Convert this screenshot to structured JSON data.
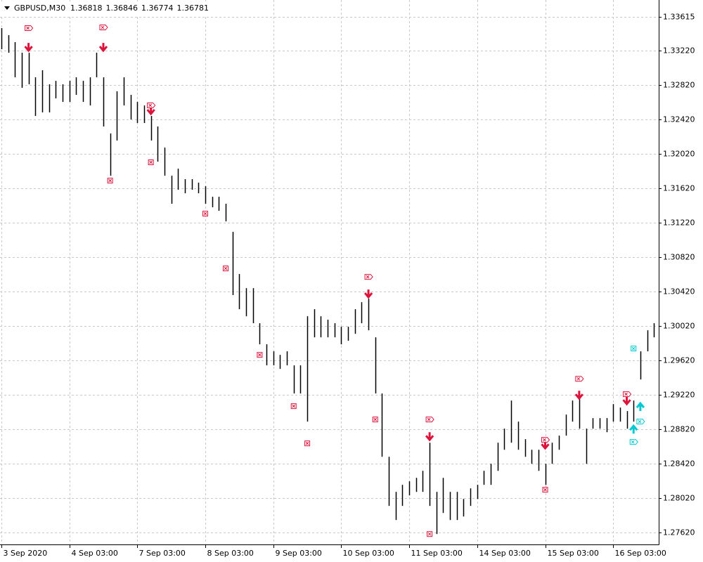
{
  "chart_data": {
    "type": "ohlc",
    "title": "GBPUSD,M30",
    "quote": [
      1.36818,
      1.36846,
      1.36774,
      1.36781
    ],
    "high": [
      1.33484,
      1.33402,
      1.33321,
      1.33198,
      1.33198,
      1.32912,
      1.32994,
      1.32831,
      1.32871,
      1.32831,
      1.32871,
      1.32912,
      1.32871,
      1.32912,
      1.33198,
      1.32912,
      1.32259,
      1.32749,
      1.32912,
      1.32708,
      1.32626,
      1.32585,
      1.32463,
      1.3234,
      1.32095,
      1.31768,
      1.3185,
      1.31728,
      1.31728,
      1.31687,
      1.31646,
      1.31523,
      1.31523,
      1.31442,
      1.31115,
      1.30625,
      1.30461,
      1.30461,
      1.30053,
      1.29808,
      1.29726,
      1.29685,
      1.29726,
      1.29563,
      1.29563,
      1.30134,
      1.30216,
      1.30134,
      1.30094,
      1.30053,
      1.30012,
      1.30012,
      1.30216,
      1.30298,
      1.30339,
      1.29889,
      1.29236,
      1.285,
      1.28092,
      1.28174,
      1.28215,
      1.28255,
      1.28337,
      1.28664,
      1.28092,
      1.28255,
      1.28092,
      1.28092,
      1.2801,
      1.28133,
      1.28174,
      1.28337,
      1.28419,
      1.28664,
      1.28827,
      1.29154,
      1.28909,
      1.28705,
      1.28582,
      1.28582,
      1.28419,
      1.28664,
      1.28746,
      1.28991,
      1.29154,
      1.29236,
      1.28827,
      1.2895,
      1.2895,
      1.2895,
      1.29113,
      1.29072,
      1.29032,
      1.29154,
      1.29726,
      1.29971,
      1.30053
    ],
    "low": [
      1.33239,
      1.33198,
      1.32912,
      1.3279,
      1.32831,
      1.32463,
      1.32504,
      1.32504,
      1.32667,
      1.32626,
      1.32626,
      1.32708,
      1.32626,
      1.32585,
      1.32912,
      1.3234,
      1.31768,
      1.32177,
      1.32585,
      1.32422,
      1.32381,
      1.32381,
      1.32177,
      1.31932,
      1.31768,
      1.31442,
      1.31605,
      1.31564,
      1.31605,
      1.31564,
      1.31442,
      1.31401,
      1.3136,
      1.31237,
      1.3038,
      1.30216,
      1.30134,
      1.30053,
      1.29808,
      1.29563,
      1.29563,
      1.29522,
      1.29563,
      1.29236,
      1.29236,
      1.28909,
      1.29889,
      1.29889,
      1.29889,
      1.29889,
      1.29808,
      1.29849,
      1.2993,
      1.30053,
      1.29971,
      1.29236,
      1.285,
      1.27929,
      1.27765,
      1.27929,
      1.28051,
      1.28092,
      1.28092,
      1.27929,
      1.27602,
      1.27847,
      1.27765,
      1.27765,
      1.27806,
      1.27929,
      1.2801,
      1.28174,
      1.28174,
      1.28337,
      1.28582,
      1.28664,
      1.28582,
      1.285,
      1.28419,
      1.28337,
      1.28174,
      1.28419,
      1.28582,
      1.28746,
      1.28909,
      1.28827,
      1.28419,
      1.28827,
      1.28827,
      1.28786,
      1.28909,
      1.28909,
      1.28827,
      1.28909,
      1.29399,
      1.29726,
      1.29889
    ],
    "bar_color": "#000000",
    "markers": [
      {
        "shape": "arrow-down",
        "color": "#dc143c",
        "bars": [
          4,
          15,
          22,
          54,
          63,
          80,
          85,
          92
        ],
        "prices": [
          1.33255,
          1.33255,
          1.3252,
          1.30388,
          1.28729,
          1.28631,
          1.29211,
          1.29146
        ]
      },
      {
        "shape": "tag",
        "color": "#dc143c",
        "bars": [
          4,
          15,
          22,
          54,
          63,
          80,
          85,
          92
        ],
        "prices": [
          1.33484,
          1.33492,
          1.32586,
          1.30592,
          1.28934,
          1.28697,
          1.29407,
          1.29228
        ]
      },
      {
        "shape": "box",
        "color": "#dc143c",
        "bars": [
          16,
          22,
          30,
          33,
          38,
          43,
          45,
          55,
          63,
          80
        ],
        "prices": [
          1.31711,
          1.31924,
          1.31327,
          1.3069,
          1.29685,
          1.29089,
          1.28656,
          1.28934,
          1.27602,
          1.28117
        ]
      },
      {
        "shape": "arrow-up",
        "color": "#00c8d2",
        "bars": [
          94,
          93
        ],
        "prices": [
          1.29089,
          1.28827
        ]
      },
      {
        "shape": "tag",
        "color": "#00c8d2",
        "bars": [
          94,
          93
        ],
        "prices": [
          1.28909,
          1.28672
        ]
      },
      {
        "shape": "box",
        "color": "#00c8d2",
        "bars": [
          93
        ],
        "prices": [
          1.29759
        ]
      }
    ],
    "xlim": [
      -0.2,
      96.7
    ],
    "xticks": [
      {
        "value": 0,
        "label": "3 Sep 2020"
      },
      {
        "value": 10,
        "label": "4 Sep 03:00"
      },
      {
        "value": 20,
        "label": "7 Sep 03:00"
      },
      {
        "value": 30,
        "label": "8 Sep 03:00"
      },
      {
        "value": 40,
        "label": "9 Sep 03:00"
      },
      {
        "value": 50,
        "label": "10 Sep 03:00"
      },
      {
        "value": 60,
        "label": "11 Sep 03:00"
      },
      {
        "value": 70,
        "label": "14 Sep 03:00"
      },
      {
        "value": 80,
        "label": "15 Sep 03:00"
      },
      {
        "value": 90,
        "label": "16 Sep 03:00"
      }
    ],
    "ylim": [
      1.27481,
      1.33811
    ],
    "yticks": [
      1.33615,
      {
        "value": 1.3322,
        "label": "1.33220"
      },
      {
        "value": 1.3282,
        "label": "1.32820"
      },
      {
        "value": 1.3242,
        "label": "1.32420"
      },
      {
        "value": 1.3202,
        "label": "1.32020"
      },
      {
        "value": 1.3162,
        "label": "1.31620"
      },
      {
        "value": 1.3122,
        "label": "1.31220"
      },
      {
        "value": 1.3082,
        "label": "1.30820"
      },
      {
        "value": 1.3042,
        "label": "1.30420"
      },
      {
        "value": 1.3002,
        "label": "1.30020"
      },
      {
        "value": 1.2962,
        "label": "1.29620"
      },
      {
        "value": 1.2922,
        "label": "1.29220"
      },
      {
        "value": 1.2882,
        "label": "1.28820"
      },
      {
        "value": 1.2842,
        "label": "1.28420"
      },
      {
        "value": 1.2802,
        "label": "1.28020"
      },
      {
        "value": 1.2762,
        "label": "1.27620"
      }
    ],
    "grid": true
  }
}
